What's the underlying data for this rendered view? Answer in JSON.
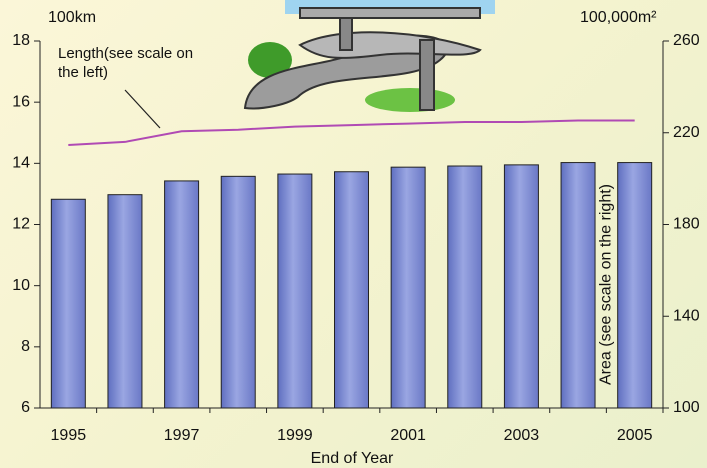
{
  "chart_data": {
    "type": "bar-line",
    "categories": [
      "1995",
      null,
      "1997",
      null,
      "1999",
      null,
      "2001",
      null,
      "2003",
      null,
      "2005"
    ],
    "x_label": "End of Year",
    "y_unit": "100km",
    "y2_unit": "100,000m²",
    "ylim": [
      6,
      18
    ],
    "yticks": [
      6,
      8,
      10,
      12,
      14,
      16,
      18
    ],
    "y2lim": [
      100,
      260
    ],
    "y2ticks": [
      100,
      140,
      180,
      220,
      260
    ],
    "series": [
      {
        "name": "Area (see scale on the right)",
        "type": "bar",
        "axis": "y2",
        "color": "#9aa6e2",
        "values": [
          191,
          193,
          199,
          201,
          202,
          203,
          205,
          205.5,
          206,
          207,
          207
        ]
      },
      {
        "name": "Length(see scale on the left)",
        "type": "line",
        "axis": "y",
        "color": "#b04ab4",
        "values": [
          14.6,
          14.7,
          15.05,
          15.1,
          15.2,
          15.25,
          15.3,
          15.35,
          15.35,
          15.4,
          15.4
        ]
      }
    ]
  }
}
